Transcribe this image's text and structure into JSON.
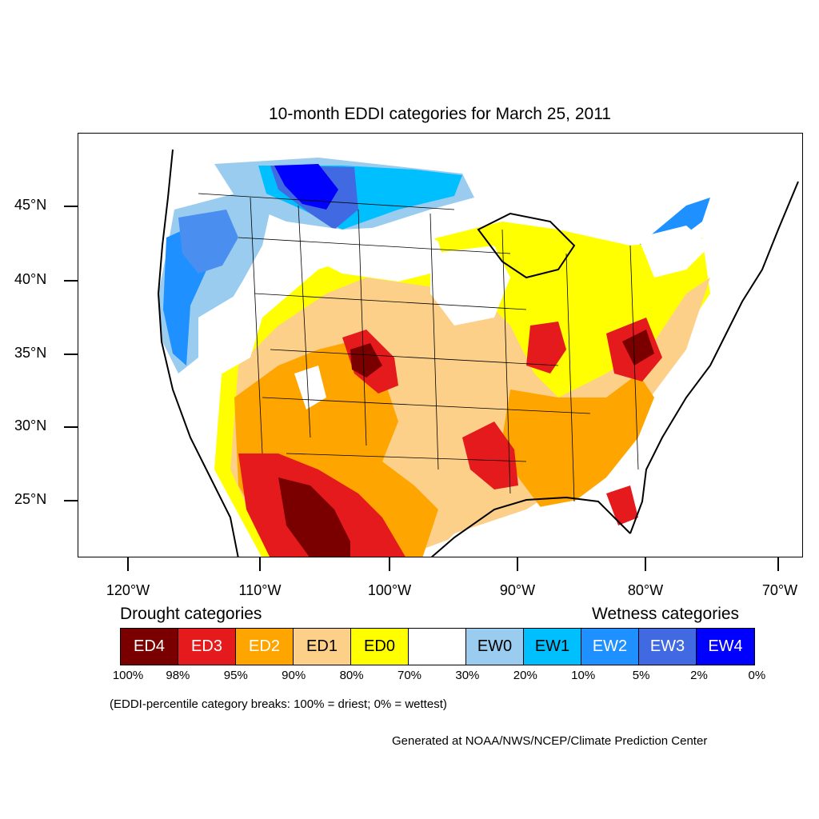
{
  "title": "10-month EDDI categories for March 25, 2011",
  "axes": {
    "lat_labels": [
      "45°N",
      "40°N",
      "35°N",
      "30°N",
      "25°N"
    ],
    "lon_labels": [
      "120°W",
      "110°W",
      "100°W",
      "90°W",
      "80°W",
      "70°W"
    ]
  },
  "legend": {
    "drought_heading": "Drought categories",
    "wetness_heading": "Wetness categories",
    "categories": [
      {
        "label": "ED4",
        "color": "#7a0000",
        "text_color": "#ffffff"
      },
      {
        "label": "ED3",
        "color": "#e41a1c",
        "text_color": "#ffffff"
      },
      {
        "label": "ED2",
        "color": "#ffa500",
        "text_color": "#ffffff"
      },
      {
        "label": "ED1",
        "color": "#fdd08a",
        "text_color": "#000000"
      },
      {
        "label": "ED0",
        "color": "#ffff00",
        "text_color": "#000000"
      },
      {
        "label": "",
        "color": "#ffffff",
        "text_color": "#000000"
      },
      {
        "label": "EW0",
        "color": "#99ccee",
        "text_color": "#000000"
      },
      {
        "label": "EW1",
        "color": "#00bfff",
        "text_color": "#000000"
      },
      {
        "label": "EW2",
        "color": "#1e90ff",
        "text_color": "#ffffff"
      },
      {
        "label": "EW3",
        "color": "#4169e1",
        "text_color": "#ffffff"
      },
      {
        "label": "EW4",
        "color": "#0000ff",
        "text_color": "#ffffff"
      }
    ],
    "percentiles": [
      "100%",
      "98%",
      "95%",
      "90%",
      "80%",
      "70%",
      "30%",
      "20%",
      "10%",
      "5%",
      "2%",
      "0%"
    ]
  },
  "note": "(EDDI-percentile category breaks: 100% = driest; 0% = wettest)",
  "credit": "Generated at NOAA/NWS/NCEP/Climate Prediction Center"
}
